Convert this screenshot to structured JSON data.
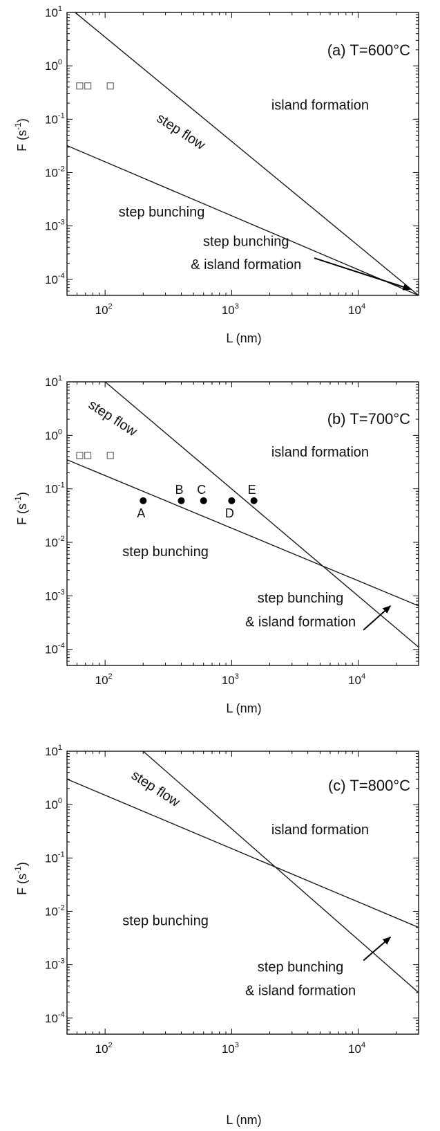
{
  "axis_labels": {
    "x": "L (nm)",
    "y_base": "F (s",
    "y_exp": "-1",
    "y_close": ")"
  },
  "colors": {
    "line": "#1a1a1a",
    "marker": "#000000",
    "open_marker": "#666666"
  },
  "chart_data": [
    {
      "type": "line",
      "title": "(a) T=600°C",
      "xlabel": "L (nm)",
      "ylabel": "F (s-1)",
      "xscale": "log",
      "yscale": "log",
      "xlim": [
        50,
        30000
      ],
      "ylim": [
        5e-05,
        10
      ],
      "x_ticks": [
        {
          "base": "10",
          "exp": "2"
        },
        {
          "base": "10",
          "exp": "3"
        },
        {
          "base": "10",
          "exp": "4"
        }
      ],
      "y_ticks": [
        {
          "base": "10",
          "exp": "1"
        },
        {
          "base": "10",
          "exp": "0"
        },
        {
          "base": "10",
          "exp": "-1"
        },
        {
          "base": "10",
          "exp": "-2"
        },
        {
          "base": "10",
          "exp": "-3"
        },
        {
          "base": "10",
          "exp": "-4"
        }
      ],
      "series": [
        {
          "points": [
            [
              58,
              10
            ],
            [
              30000,
              5e-05
            ]
          ]
        },
        {
          "points": [
            [
              50,
              0.032
            ],
            [
              30000,
              5e-05
            ]
          ]
        }
      ],
      "open_squares": [
        [
          63,
          0.42
        ],
        [
          73,
          0.42
        ],
        [
          110,
          0.42
        ]
      ],
      "points": [],
      "regions": [
        {
          "text": "step flow",
          "x": 380,
          "y": 0.05,
          "rotate": 33
        },
        {
          "text": "island formation",
          "x": 5000,
          "y": 0.15
        },
        {
          "text": "step bunching",
          "x": 280,
          "y": 0.0015
        },
        {
          "text": "step bunching",
          "x": 1300,
          "y": 0.00042
        },
        {
          "text": "& island formation",
          "x": 1300,
          "y": 0.000155
        }
      ],
      "arrow": {
        "from": [
          4500,
          0.00025
        ],
        "to": [
          26000,
          6.5e-05
        ]
      }
    },
    {
      "type": "line",
      "title": "(b) T=700°C",
      "xlabel": "L (nm)",
      "ylabel": "F (s-1)",
      "xscale": "log",
      "yscale": "log",
      "xlim": [
        50,
        30000
      ],
      "ylim": [
        5e-05,
        10
      ],
      "x_ticks": [
        {
          "base": "10",
          "exp": "2"
        },
        {
          "base": "10",
          "exp": "3"
        },
        {
          "base": "10",
          "exp": "4"
        }
      ],
      "y_ticks": [
        {
          "base": "10",
          "exp": "1"
        },
        {
          "base": "10",
          "exp": "0"
        },
        {
          "base": "10",
          "exp": "-1"
        },
        {
          "base": "10",
          "exp": "-2"
        },
        {
          "base": "10",
          "exp": "-3"
        },
        {
          "base": "10",
          "exp": "-4"
        }
      ],
      "series": [
        {
          "points": [
            [
              100,
              10
            ],
            [
              30000,
              0.00011
            ]
          ]
        },
        {
          "points": [
            [
              50,
              0.35
            ],
            [
              30000,
              0.00065
            ]
          ]
        }
      ],
      "open_squares": [
        [
          63,
          0.42
        ],
        [
          73,
          0.42
        ],
        [
          110,
          0.42
        ]
      ],
      "points": [
        {
          "label": "A",
          "x": 200,
          "y": 0.06,
          "label_pos": "below"
        },
        {
          "label": "B",
          "x": 400,
          "y": 0.06,
          "label_pos": "above"
        },
        {
          "label": "C",
          "x": 600,
          "y": 0.06,
          "label_pos": "above"
        },
        {
          "label": "D",
          "x": 1000,
          "y": 0.06,
          "label_pos": "below"
        },
        {
          "label": "E",
          "x": 1500,
          "y": 0.06,
          "label_pos": "above"
        }
      ],
      "regions": [
        {
          "text": "step flow",
          "x": 110,
          "y": 1.8,
          "rotate": 33
        },
        {
          "text": "island formation",
          "x": 5000,
          "y": 0.4
        },
        {
          "text": "step bunching",
          "x": 300,
          "y": 0.0055
        },
        {
          "text": "step bunching",
          "x": 3500,
          "y": 0.00075
        },
        {
          "text": "& island formation",
          "x": 3500,
          "y": 0.00027
        }
      ],
      "arrow": {
        "from": [
          11000,
          0.00023
        ],
        "to": [
          18000,
          0.00065
        ]
      }
    },
    {
      "type": "line",
      "title": "(c) T=800°C",
      "xlabel": "L (nm)",
      "ylabel": "F (s-1)",
      "xscale": "log",
      "yscale": "log",
      "xlim": [
        50,
        30000
      ],
      "ylim": [
        5e-05,
        10
      ],
      "x_ticks": [
        {
          "base": "10",
          "exp": "2"
        },
        {
          "base": "10",
          "exp": "3"
        },
        {
          "base": "10",
          "exp": "4"
        }
      ],
      "y_ticks": [
        {
          "base": "10",
          "exp": "1"
        },
        {
          "base": "10",
          "exp": "0"
        },
        {
          "base": "10",
          "exp": "-1"
        },
        {
          "base": "10",
          "exp": "-2"
        },
        {
          "base": "10",
          "exp": "-3"
        },
        {
          "base": "10",
          "exp": "-4"
        }
      ],
      "series": [
        {
          "points": [
            [
              200,
              10
            ],
            [
              30000,
              0.0003
            ]
          ]
        },
        {
          "points": [
            [
              50,
              3
            ],
            [
              30000,
              0.005
            ]
          ]
        }
      ],
      "open_squares": [],
      "points": [],
      "regions": [
        {
          "text": "step flow",
          "x": 240,
          "y": 1.7,
          "rotate": 33
        },
        {
          "text": "island formation",
          "x": 5000,
          "y": 0.28
        },
        {
          "text": "step bunching",
          "x": 300,
          "y": 0.0055
        },
        {
          "text": "step bunching",
          "x": 3500,
          "y": 0.00075
        },
        {
          "text": "& island formation",
          "x": 3500,
          "y": 0.00027
        }
      ],
      "arrow": {
        "from": [
          11000,
          0.0012
        ],
        "to": [
          18000,
          0.0033
        ]
      }
    }
  ]
}
